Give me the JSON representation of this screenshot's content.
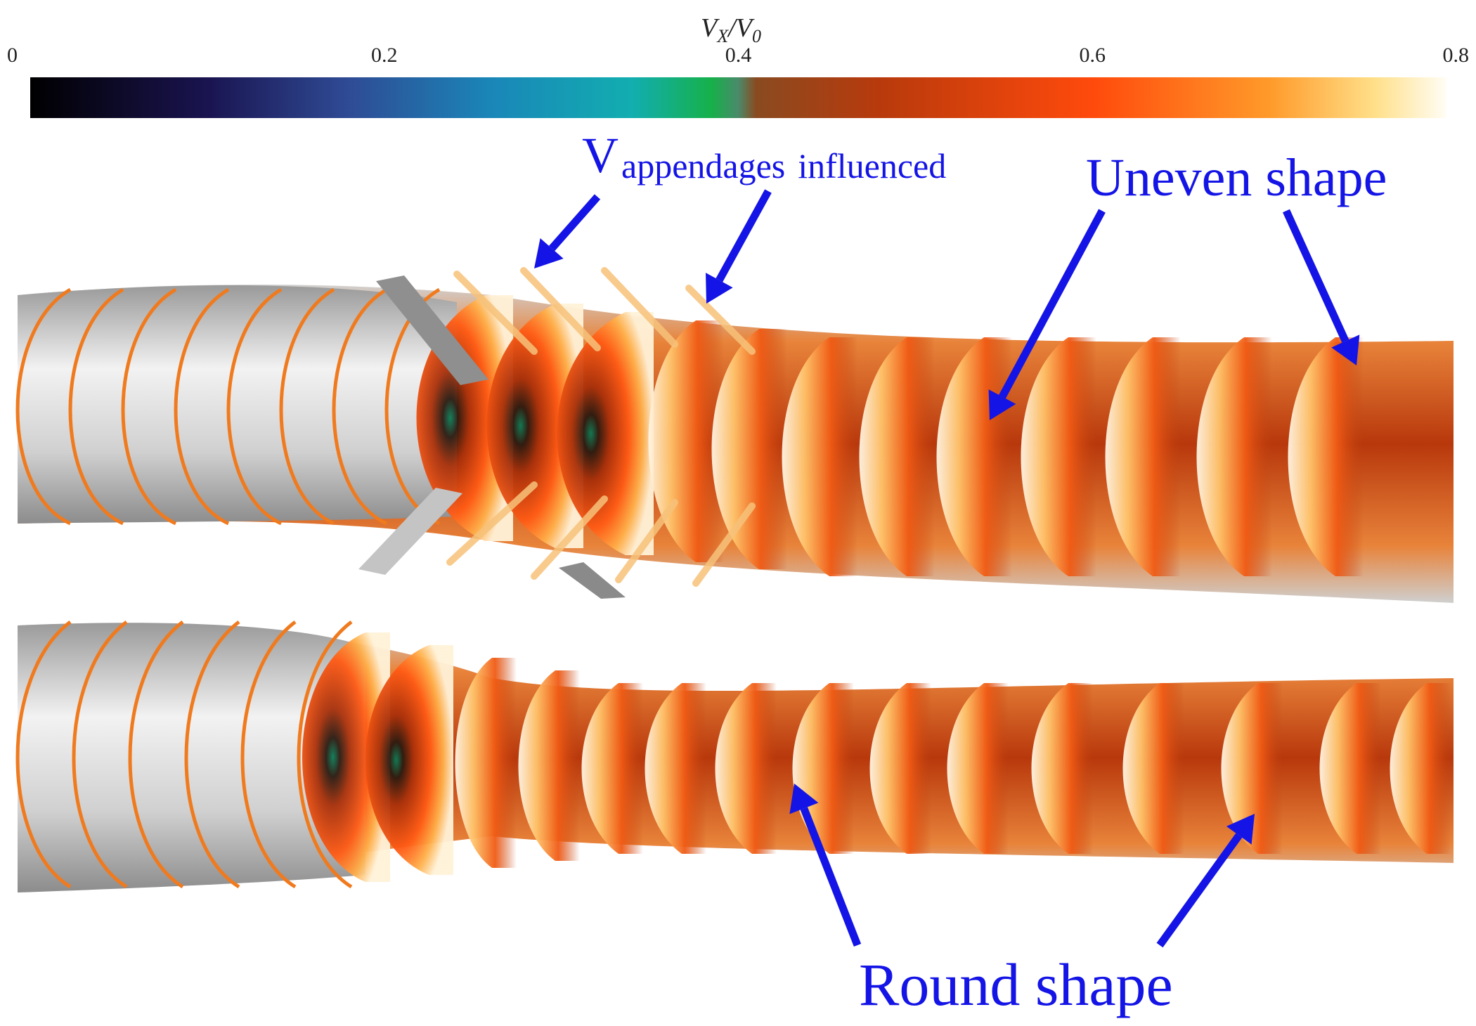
{
  "colorbar": {
    "title_main": "V",
    "title_main_sub": "X",
    "title_slash": "/V",
    "title_den_sub": "0",
    "ticks": [
      "0",
      "0.2",
      "0.4",
      "0.6",
      "0.8"
    ],
    "range": [
      0,
      0.8
    ],
    "stops": [
      {
        "v": 0.0,
        "color": "#000000"
      },
      {
        "v": 0.1,
        "color": "#1a1450"
      },
      {
        "v": 0.18,
        "color": "#2f4b95"
      },
      {
        "v": 0.26,
        "color": "#1a86b8"
      },
      {
        "v": 0.34,
        "color": "#12aeb0"
      },
      {
        "v": 0.385,
        "color": "#17b04a"
      },
      {
        "v": 0.4,
        "color": "#4a8a6a"
      },
      {
        "v": 0.41,
        "color": "#8a4a20"
      },
      {
        "v": 0.48,
        "color": "#b83a0c"
      },
      {
        "v": 0.6,
        "color": "#ff4a0c"
      },
      {
        "v": 0.7,
        "color": "#ff9a2a"
      },
      {
        "v": 0.76,
        "color": "#ffe08a"
      },
      {
        "v": 0.8,
        "color": "#fffdf5"
      }
    ]
  },
  "annotations": {
    "appendages_V": "V",
    "appendages_sub": "appendages",
    "appendages_rest": "influenced",
    "uneven": "Uneven shape",
    "round": "Round shape"
  },
  "colors": {
    "annotation": "#1414e6",
    "hull": "#c8c8c8",
    "wake_core": "#b8380c"
  }
}
